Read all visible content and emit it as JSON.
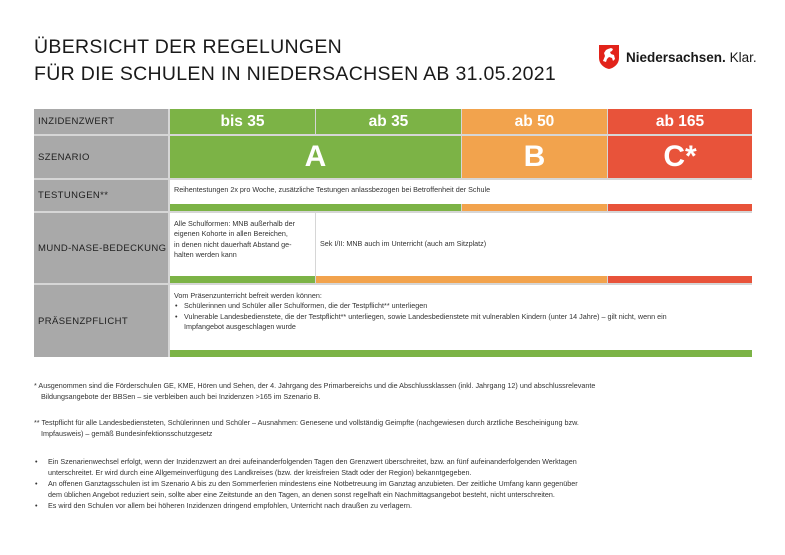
{
  "title": {
    "line1": "ÜBERSICHT DER REGELUNGEN",
    "line2": "FÜR DIE SCHULEN IN NIEDERSACHSEN AB 31.05.2021"
  },
  "logo": {
    "brand": "Niedersachsen.",
    "suffix": " Klar.",
    "icon": "horse-shield-icon"
  },
  "table": {
    "labels": {
      "incidence": "INZIDENZWERT",
      "scenario": "SZENARIO",
      "testing": "TESTUNGEN**",
      "mask": "MUND-NASE-BEDECKUNG",
      "attendance": "PRÄSENZPFLICHT"
    },
    "incidence": [
      "bis 35",
      "ab 35",
      "ab 50",
      "ab 165"
    ],
    "scenarios": [
      "A",
      "B",
      "C*"
    ],
    "testing_text": "Reihentestungen 2x pro Woche, zusätzliche Testungen anlassbezogen bei Betroffenheit der Schule",
    "mask_left": [
      "Alle Schulformen: MNB außerhalb der",
      "eigenen Kohorte in allen Bereichen,",
      "in denen nicht dauerhaft Abstand ge-",
      "halten werden kann"
    ],
    "mask_right": "Sek I/II: MNB auch im Unterricht (auch am Sitzplatz)",
    "attendance_intro": "Vom Präsenzunterricht befreit werden können:",
    "attendance_items": [
      "Schülerinnen und Schüler aller Schulformen, die der Testpflicht** unterliegen",
      "Vulnerable Landesbedienstete, die der Testpflicht** unterliegen, sowie Landesbedienstete mit vulnerablen Kindern (unter 14 Jahre) – gilt nicht, wenn ein",
      "Impfangebot ausgeschlagen wurde"
    ],
    "colors": {
      "green": "#7cb346",
      "orange": "#f2a34d",
      "red": "#e8533a",
      "label_gray": "#a9a9a9"
    }
  },
  "footnotes": {
    "star1_line1": "* Ausgenommen sind die Förderschulen GE, KME, Hören und Sehen, der 4. Jahrgang des Primarbereichs und die Abschlussklassen (inkl. Jahrgang 12) und abschlussrelevante",
    "star1_line2": "Bildungsangebote der BBSen – sie verbleiben auch bei Inzidenzen >165 im Szenario B.",
    "star2_line1": "** Testpflicht für alle Landesbediensteten, Schülerinnen und Schüler – Ausnahmen: Genesene und vollständig Geimpfte (nachgewiesen durch ärztliche Bescheinigung bzw.",
    "star2_line2": "Impfausweis) – gemäß Bundesinfektionsschutzgesetz",
    "bullets": [
      [
        "Ein Szenarienwechsel erfolgt, wenn der Inzidenzwert an drei aufeinanderfolgenden Tagen den Grenzwert überschreitet, bzw. an fünf aufeinanderfolgenden Werktagen",
        "unterschreitet. Er wird durch eine Allgemeinverfügung des Landkreises (bzw. der kreisfreien Stadt oder der Region) bekanntgegeben."
      ],
      [
        "An offenen Ganztagsschulen ist im Szenario A bis zu den Sommerferien mindestens eine Notbetreuung im Ganztag anzubieten. Der zeitliche Umfang kann gegenüber",
        "dem üblichen Angebot reduziert sein, sollte aber eine Zeitstunde an den Tagen, an denen sonst regelhaft ein Nachmittagsangebot besteht, nicht unterschreiten."
      ],
      [
        "Es wird den Schulen vor allem bei höheren Inzidenzen dringend empfohlen, Unterricht nach draußen zu verlagern."
      ]
    ]
  }
}
